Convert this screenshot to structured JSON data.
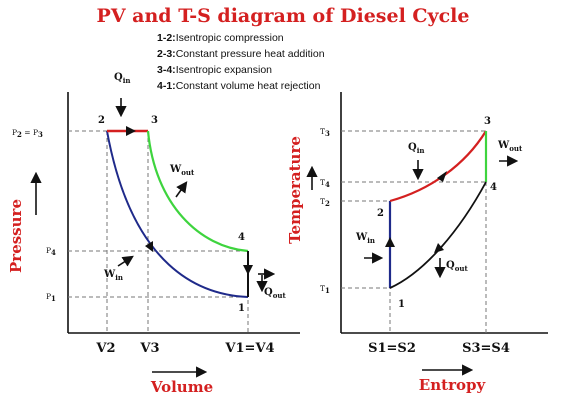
{
  "title": "PV and T-S diagram of Diesel Cycle",
  "legend": [
    {
      "key": "1-2:",
      "text": "Isentropic compression"
    },
    {
      "key": "2-3:",
      "text": "Constant pressure heat addition"
    },
    {
      "key": "3-4:",
      "text": "Isentropic expansion"
    },
    {
      "key": "4-1:",
      "text": "Constant volume heat rejection"
    }
  ],
  "colors": {
    "title": "#d42020",
    "compression": "#1f2a8a",
    "heat_addition": "#d42020",
    "expansion": "#3ed43e",
    "heat_rejection": "#111111"
  },
  "pv": {
    "y_axis_label": "Pressure",
    "x_axis_label": "Volume",
    "pressure_labels": {
      "p23_base": "P",
      "p23_sub2": "2",
      "p23_eq": " = P",
      "p23_sub3": "3",
      "p4": "P",
      "p4_sub": "4",
      "p1": "P",
      "p1_sub": "1"
    },
    "volume_labels": [
      "V2",
      "V3",
      "V1=V4"
    ],
    "points": {
      "p1": "1",
      "p2": "2",
      "p3": "3",
      "p4": "4"
    },
    "q_in": {
      "base": "Q",
      "sub": "in"
    },
    "q_out": {
      "base": "Q",
      "sub": "out"
    },
    "w_in": {
      "base": "W",
      "sub": "in"
    },
    "w_out": {
      "base": "W",
      "sub": "out"
    }
  },
  "ts": {
    "y_axis_label": "Temperature",
    "x_axis_label": "Entropy",
    "temp_labels": {
      "t3": "T",
      "t3_sub": "3",
      "t4": "T",
      "t4_sub": "4",
      "t2": "T",
      "t2_sub": "2",
      "t1": "T",
      "t1_sub": "1"
    },
    "entropy_labels": [
      "S1=S2",
      "S3=S4"
    ],
    "points": {
      "p1": "1",
      "p2": "2",
      "p3": "3",
      "p4": "4"
    },
    "q_in": {
      "base": "Q",
      "sub": "in"
    },
    "q_out": {
      "base": "Q",
      "sub": "out"
    },
    "w_in": {
      "base": "W",
      "sub": "in"
    },
    "w_out": {
      "base": "W",
      "sub": "out"
    }
  }
}
